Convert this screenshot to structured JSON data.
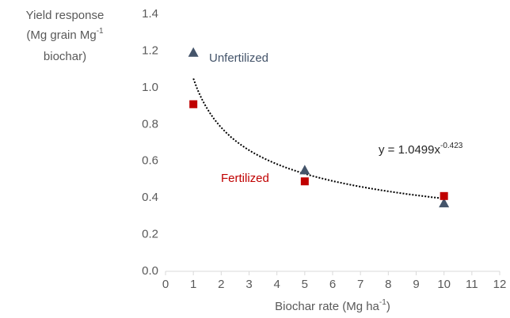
{
  "chart_data": {
    "type": "scatter",
    "y_label": [
      "Yield response",
      "(Mg grain Mg",
      "-1",
      "biochar)"
    ],
    "x_label": [
      "Biochar rate (Mg ha",
      "-1",
      ")"
    ],
    "x": [
      1,
      5,
      10
    ],
    "series": [
      {
        "name": "Unfertilized",
        "color": "#44546a",
        "marker": "triangle",
        "values": [
          1.19,
          0.55,
          0.37
        ]
      },
      {
        "name": "Fertilized",
        "color": "#c00000",
        "marker": "square",
        "values": [
          0.91,
          0.49,
          0.41
        ]
      }
    ],
    "trendline": {
      "kind": "power",
      "a": 1.0499,
      "b": -0.423,
      "x_range": [
        1,
        10
      ],
      "label": [
        "y = 1.0499x",
        "-0.423"
      ]
    },
    "xlim": [
      0,
      12
    ],
    "xticks": [
      0,
      1,
      2,
      3,
      4,
      5,
      6,
      7,
      8,
      9,
      10,
      11,
      12
    ],
    "ylim": [
      0,
      1.4
    ],
    "yticks": [
      {
        "value": 0,
        "label": "0.0"
      },
      0.2,
      0.4,
      0.6,
      0.8,
      {
        "value": 1,
        "label": "1.0"
      },
      1.2,
      1.4
    ],
    "grid": false
  }
}
